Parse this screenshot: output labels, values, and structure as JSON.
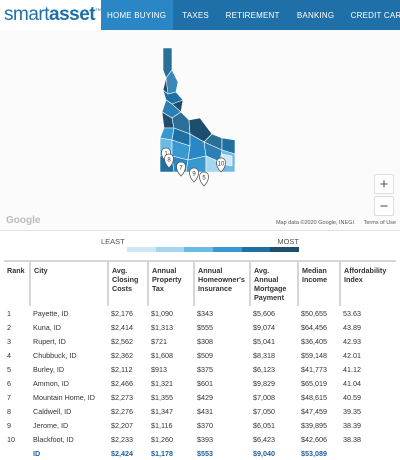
{
  "header": {
    "logo_light": "smart",
    "logo_bold": "asset",
    "logo_tm": "™",
    "nav": [
      "HOME BUYING",
      "TAXES",
      "RETIREMENT",
      "BANKING",
      "CREDIT CARDS"
    ]
  },
  "map": {
    "zoom_in": "+",
    "zoom_out": "−",
    "google": "Google",
    "map_data": "Map data ©2020 Google, INEGI",
    "terms": "Terms of Use",
    "markers": [
      "1",
      "7",
      "8",
      "9",
      "5",
      "10"
    ]
  },
  "legend": {
    "least": "LEAST",
    "most": "MOST",
    "colors": [
      "#cde7f5",
      "#a5d5ef",
      "#6cbbe3",
      "#3799cf",
      "#1f6fa3",
      "#1d4e6e"
    ]
  },
  "table": {
    "columns": [
      "Rank",
      "City",
      "Avg. Closing Costs",
      "Annual Property Tax",
      "Annual Homeowner's Insurance",
      "Avg. Annual Mortgage Payment",
      "Median Income",
      "Affordability Index"
    ],
    "rows": [
      [
        "1",
        "Payette, ID",
        "$2,176",
        "$1,090",
        "$343",
        "$5,606",
        "$50,655",
        "53.63"
      ],
      [
        "2",
        "Kuna, ID",
        "$2,414",
        "$1,313",
        "$555",
        "$9,074",
        "$64,456",
        "43.89"
      ],
      [
        "3",
        "Rupert, ID",
        "$2,562",
        "$721",
        "$308",
        "$5,041",
        "$36,405",
        "42.93"
      ],
      [
        "4",
        "Chubbuck, ID",
        "$2,362",
        "$1,608",
        "$509",
        "$8,318",
        "$59,148",
        "42.01"
      ],
      [
        "5",
        "Burley, ID",
        "$2,112",
        "$913",
        "$375",
        "$6,123",
        "$41,773",
        "41.12"
      ],
      [
        "6",
        "Ammon, ID",
        "$2,466",
        "$1,321",
        "$601",
        "$9,829",
        "$65,019",
        "41.04"
      ],
      [
        "7",
        "Mountain Home, ID",
        "$2,273",
        "$1,355",
        "$429",
        "$7,008",
        "$48,615",
        "40.59"
      ],
      [
        "8",
        "Caldwell, ID",
        "$2,276",
        "$1,347",
        "$431",
        "$7,050",
        "$47,459",
        "39.35"
      ],
      [
        "9",
        "Jerome, ID",
        "$2,207",
        "$1,116",
        "$370",
        "$6,051",
        "$39,895",
        "38.39"
      ],
      [
        "10",
        "Blackfoot, ID",
        "$2,233",
        "$1,260",
        "$393",
        "$6,423",
        "$42,606",
        "38.38"
      ]
    ],
    "summary": [
      "",
      "ID",
      "$2,424",
      "$1,178",
      "$553",
      "$9,040",
      "$53,089",
      ""
    ]
  }
}
